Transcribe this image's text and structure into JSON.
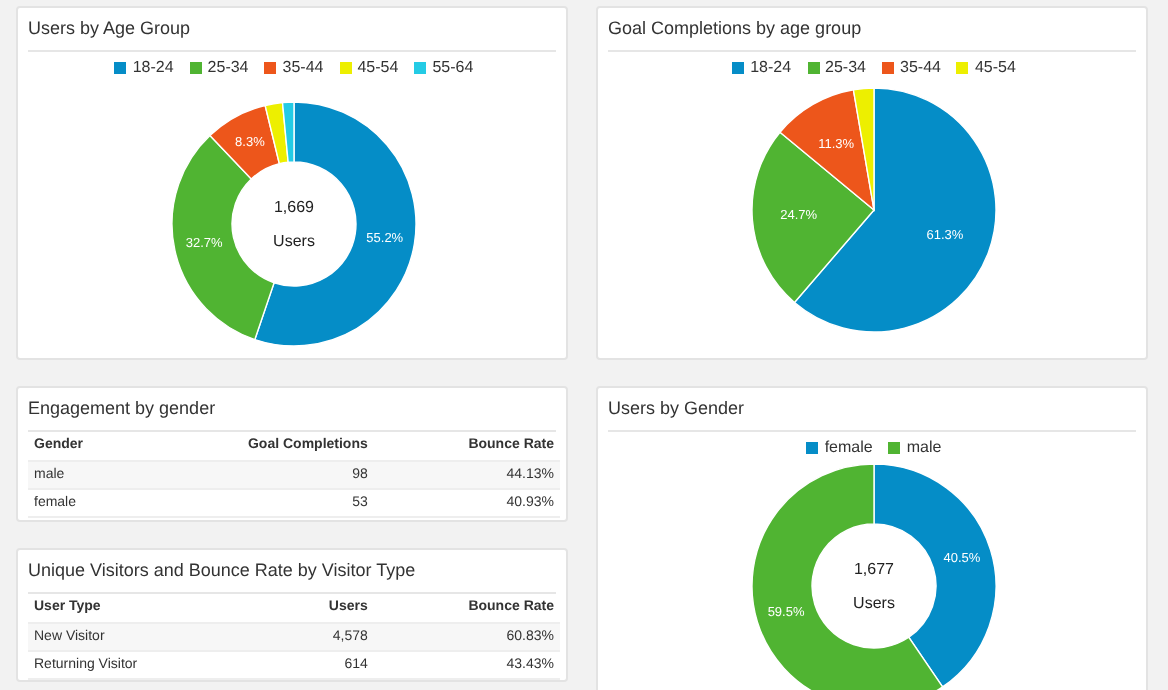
{
  "chart_data": [
    {
      "type": "donut",
      "title": "Users by Age Group",
      "categories": [
        "18-24",
        "25-34",
        "35-44",
        "45-54",
        "55-64"
      ],
      "values": [
        55.2,
        32.7,
        8.3,
        2.3,
        1.5
      ],
      "colors": [
        "#058dc7",
        "#50b432",
        "#ed561b",
        "#edef00",
        "#24cbe5"
      ],
      "value_labels": [
        "55.2%",
        "32.7%",
        "8.3%",
        null,
        null
      ],
      "annotations": [
        "1,669",
        "Users"
      ],
      "legend": "top"
    },
    {
      "type": "pie",
      "title": "Goal Completions by age group",
      "categories": [
        "18-24",
        "25-34",
        "35-44",
        "45-54"
      ],
      "values": [
        61.3,
        24.7,
        11.3,
        2.7
      ],
      "colors": [
        "#058dc7",
        "#50b432",
        "#ed561b",
        "#edef00"
      ],
      "value_labels": [
        "61.3%",
        "24.7%",
        "11.3%",
        null
      ],
      "legend": "top"
    },
    {
      "type": "other",
      "title": "Engagement by gender",
      "annotations": [
        "Gender",
        "Goal Completions",
        "Bounce Rate",
        "male",
        "98",
        "44.13%",
        "female",
        "53",
        "40.93%"
      ]
    },
    {
      "type": "other",
      "title": "Unique Visitors and Bounce Rate by Visitor Type",
      "annotations": [
        "User Type",
        "Users",
        "Bounce Rate",
        "New Visitor",
        "4,578",
        "60.83%",
        "Returning Visitor",
        "614",
        "43.43%"
      ]
    },
    {
      "type": "donut",
      "title": "Users by Gender",
      "categories": [
        "female",
        "male"
      ],
      "values": [
        40.5,
        59.5
      ],
      "colors": [
        "#058dc7",
        "#50b432"
      ],
      "value_labels": [
        "40.5%",
        "59.5%"
      ],
      "annotations": [
        "1,677",
        "Users"
      ],
      "legend": "top"
    }
  ]
}
